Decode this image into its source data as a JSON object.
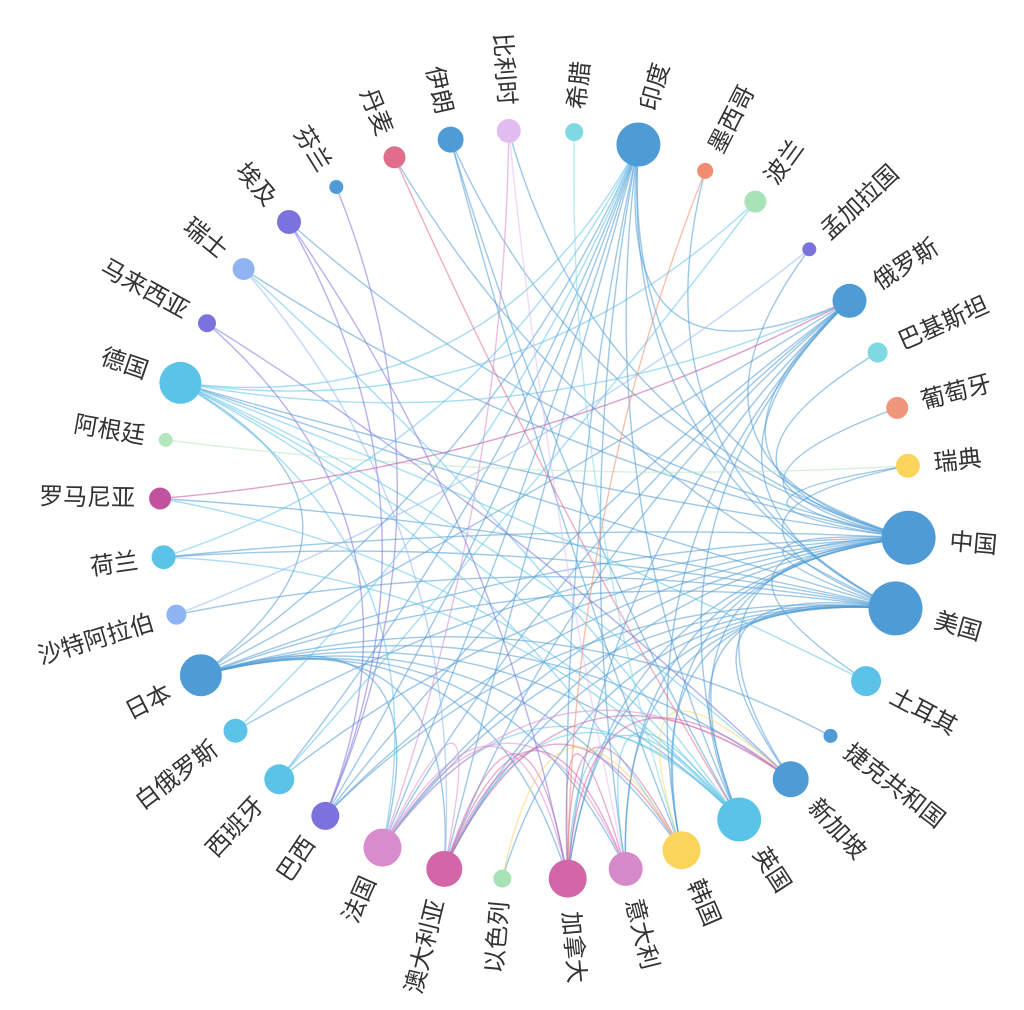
{
  "nodes": [
    {
      "id": "zhongguo",
      "label": "中国",
      "angle": 5,
      "size": 27,
      "color": "#4e9bd6"
    },
    {
      "id": "meiguo",
      "label": "美国",
      "angle": 16,
      "size": 27,
      "color": "#4e9bd6"
    },
    {
      "id": "tuerqi",
      "label": "土耳其",
      "angle": 28,
      "size": 15,
      "color": "#5cc3e8"
    },
    {
      "id": "jieke",
      "label": "捷克共和国",
      "angle": 38,
      "size": 7,
      "color": "#4e9bd6"
    },
    {
      "id": "xinjiapo",
      "label": "新加坡",
      "angle": 47,
      "size": 18,
      "color": "#4e9bd6"
    },
    {
      "id": "yingguo",
      "label": "英国",
      "angle": 57,
      "size": 22,
      "color": "#5cc3e8"
    },
    {
      "id": "hanguo",
      "label": "韩国",
      "angle": 67,
      "size": 19,
      "color": "#fbd45c"
    },
    {
      "id": "yidali",
      "label": "意大利",
      "angle": 76,
      "size": 17,
      "color": "#d78ac9"
    },
    {
      "id": "jianada",
      "label": "加拿大",
      "angle": 85,
      "size": 19,
      "color": "#d366a8"
    },
    {
      "id": "yiselie",
      "label": "以色列",
      "angle": 95,
      "size": 9,
      "color": "#a8e3b8"
    },
    {
      "id": "aodaliya",
      "label": "澳大利亚",
      "angle": 104,
      "size": 18,
      "color": "#d366a8"
    },
    {
      "id": "faguo",
      "label": "法国",
      "angle": 114,
      "size": 19,
      "color": "#d98ccc"
    },
    {
      "id": "baxi",
      "label": "巴西",
      "angle": 124,
      "size": 14,
      "color": "#7b72dd"
    },
    {
      "id": "xibanya",
      "label": "西班牙",
      "angle": 133,
      "size": 15,
      "color": "#5cc3e8"
    },
    {
      "id": "baieluosi",
      "label": "白俄罗斯",
      "angle": 143,
      "size": 12,
      "color": "#5cc3e8"
    },
    {
      "id": "riben",
      "label": "日本",
      "angle": 153,
      "size": 21,
      "color": "#4e9bd6"
    },
    {
      "id": "shate",
      "label": "沙特阿拉伯",
      "angle": 163,
      "size": 10,
      "color": "#8fb4f2"
    },
    {
      "id": "helan",
      "label": "荷兰",
      "angle": 172,
      "size": 12,
      "color": "#5cc3e8"
    },
    {
      "id": "luomaniya",
      "label": "罗马尼亚",
      "angle": 181,
      "size": 11,
      "color": "#c3529e"
    },
    {
      "id": "agenting",
      "label": "阿根廷",
      "angle": 190,
      "size": 7,
      "color": "#b4e6c0"
    },
    {
      "id": "deguo",
      "label": "德国",
      "angle": 199,
      "size": 21,
      "color": "#5cc3e8"
    },
    {
      "id": "malaixiya",
      "label": "马来西亚",
      "angle": 209,
      "size": 9,
      "color": "#7b72dd"
    },
    {
      "id": "ruishi",
      "label": "瑞士",
      "angle": 219,
      "size": 11,
      "color": "#8fb4f2"
    },
    {
      "id": "aiji",
      "label": "埃及",
      "angle": 229,
      "size": 12,
      "color": "#7b72dd"
    },
    {
      "id": "fenlan",
      "label": "芬兰",
      "angle": 238,
      "size": 7,
      "color": "#4e9bd6"
    },
    {
      "id": "danmai",
      "label": "丹麦",
      "angle": 248,
      "size": 11,
      "color": "#e06d8c"
    },
    {
      "id": "yilang",
      "label": "伊朗",
      "angle": 257,
      "size": 13,
      "color": "#4e9bd6"
    },
    {
      "id": "bilishi",
      "label": "比利时",
      "angle": 266,
      "size": 12,
      "color": "#e2bcf0"
    },
    {
      "id": "xila",
      "label": "希腊",
      "angle": 276,
      "size": 9,
      "color": "#7fd9e3"
    },
    {
      "id": "yindu",
      "label": "印度",
      "angle": 286,
      "size": 22,
      "color": "#4e9bd6"
    },
    {
      "id": "moxige",
      "label": "墨西哥",
      "angle": 297,
      "size": 8,
      "color": "#f08c70"
    },
    {
      "id": "bolan",
      "label": "波兰",
      "angle": 306,
      "size": 11,
      "color": "#a8e3b8"
    },
    {
      "id": "mengjialaguo",
      "label": "孟加拉国",
      "angle": 317,
      "size": 7,
      "color": "#7b72dd"
    },
    {
      "id": "eluosi",
      "label": "俄罗斯",
      "angle": 327,
      "size": 17,
      "color": "#4e9bd6"
    },
    {
      "id": "bajisitan",
      "label": "巴基斯坦",
      "angle": 336,
      "size": 10,
      "color": "#7fd9e3"
    },
    {
      "id": "putaoya",
      "label": "葡萄牙",
      "angle": 345,
      "size": 11,
      "color": "#f0967a"
    },
    {
      "id": "ruidian",
      "label": "瑞典",
      "angle": 354,
      "size": 12,
      "color": "#fbd45c"
    }
  ],
  "links": [
    [
      "zhongguo",
      "meiguo"
    ],
    [
      "zhongguo",
      "riben"
    ],
    [
      "zhongguo",
      "deguo"
    ],
    [
      "zhongguo",
      "yindu"
    ],
    [
      "zhongguo",
      "eluosi"
    ],
    [
      "zhongguo",
      "yingguo"
    ],
    [
      "zhongguo",
      "hanguo"
    ],
    [
      "zhongguo",
      "jianada"
    ],
    [
      "zhongguo",
      "aodaliya"
    ],
    [
      "zhongguo",
      "faguo"
    ],
    [
      "zhongguo",
      "xinjiapo"
    ],
    [
      "zhongguo",
      "baxi"
    ],
    [
      "zhongguo",
      "xibanya"
    ],
    [
      "zhongguo",
      "helan"
    ],
    [
      "zhongguo",
      "ruishi"
    ],
    [
      "zhongguo",
      "bajisitan"
    ],
    [
      "zhongguo",
      "ruidian"
    ],
    [
      "zhongguo",
      "putaoya"
    ],
    [
      "zhongguo",
      "tuerqi"
    ],
    [
      "zhongguo",
      "yidali"
    ],
    [
      "zhongguo",
      "baieluosi"
    ],
    [
      "zhongguo",
      "mengjialaguo"
    ],
    [
      "zhongguo",
      "bilishi"
    ],
    [
      "zhongguo",
      "yilang"
    ],
    [
      "zhongguo",
      "aiji"
    ],
    [
      "meiguo",
      "riben"
    ],
    [
      "meiguo",
      "deguo"
    ],
    [
      "meiguo",
      "yingguo"
    ],
    [
      "meiguo",
      "jianada"
    ],
    [
      "meiguo",
      "faguo"
    ],
    [
      "meiguo",
      "yindu"
    ],
    [
      "meiguo",
      "hanguo"
    ],
    [
      "meiguo",
      "aodaliya"
    ],
    [
      "meiguo",
      "yiselie"
    ],
    [
      "meiguo",
      "baxi"
    ],
    [
      "meiguo",
      "moxige"
    ],
    [
      "meiguo",
      "xinjiapo"
    ],
    [
      "meiguo",
      "luomaniya"
    ],
    [
      "meiguo",
      "danmai"
    ],
    [
      "meiguo",
      "eluosi"
    ],
    [
      "meiguo",
      "shate"
    ],
    [
      "meiguo",
      "helan"
    ],
    [
      "meiguo",
      "ruidian"
    ],
    [
      "meiguo",
      "yidali"
    ],
    [
      "riben",
      "yindu"
    ],
    [
      "riben",
      "deguo"
    ],
    [
      "riben",
      "eluosi"
    ],
    [
      "riben",
      "yingguo"
    ],
    [
      "riben",
      "faguo"
    ],
    [
      "riben",
      "hanguo"
    ],
    [
      "riben",
      "xinjiapo"
    ],
    [
      "riben",
      "aodaliya"
    ],
    [
      "riben",
      "jianada"
    ],
    [
      "riben",
      "yidali"
    ],
    [
      "deguo",
      "yindu"
    ],
    [
      "deguo",
      "eluosi"
    ],
    [
      "deguo",
      "faguo"
    ],
    [
      "deguo",
      "yingguo"
    ],
    [
      "deguo",
      "hanguo"
    ],
    [
      "deguo",
      "xinjiapo"
    ],
    [
      "deguo",
      "bolan"
    ],
    [
      "yindu",
      "eluosi"
    ],
    [
      "yindu",
      "yingguo"
    ],
    [
      "yindu",
      "baxi"
    ],
    [
      "yindu",
      "faguo"
    ],
    [
      "yindu",
      "aodaliya"
    ],
    [
      "yindu",
      "jianada"
    ],
    [
      "yindu",
      "yidali"
    ],
    [
      "yindu",
      "xibanya"
    ],
    [
      "eluosi",
      "faguo"
    ],
    [
      "eluosi",
      "yingguo"
    ],
    [
      "eluosi",
      "jianada"
    ],
    [
      "eluosi",
      "aodaliya"
    ],
    [
      "eluosi",
      "baxi"
    ],
    [
      "eluosi",
      "hanguo"
    ],
    [
      "yingguo",
      "faguo"
    ],
    [
      "yingguo",
      "aodaliya"
    ],
    [
      "yingguo",
      "jianada"
    ],
    [
      "yingguo",
      "yidali"
    ],
    [
      "yingguo",
      "luomaniya"
    ],
    [
      "yingguo",
      "helan"
    ],
    [
      "yingguo",
      "ruishi"
    ],
    [
      "faguo",
      "jianada"
    ],
    [
      "faguo",
      "aodaliya"
    ],
    [
      "faguo",
      "yidali"
    ],
    [
      "faguo",
      "bilishi"
    ],
    [
      "faguo",
      "xinjiapo"
    ],
    [
      "aodaliya",
      "jianada"
    ],
    [
      "aodaliya",
      "hanguo"
    ],
    [
      "aodaliya",
      "xinjiapo"
    ],
    [
      "aodaliya",
      "yidali"
    ],
    [
      "jianada",
      "hanguo"
    ],
    [
      "jianada",
      "xinjiapo"
    ],
    [
      "jianada",
      "yidali"
    ],
    [
      "hanguo",
      "xinjiapo"
    ],
    [
      "hanguo",
      "yiselie"
    ],
    [
      "baxi",
      "aiji"
    ],
    [
      "baxi",
      "malaixiya"
    ],
    [
      "baxi",
      "fenlan"
    ],
    [
      "xibanya",
      "bolan"
    ],
    [
      "baieluosi",
      "yindu"
    ],
    [
      "shate",
      "mengjialaguo"
    ],
    [
      "agenting",
      "ruidian"
    ],
    [
      "yilang",
      "yingguo"
    ],
    [
      "yilang",
      "hanguo"
    ],
    [
      "bilishi",
      "yidali"
    ],
    [
      "xila",
      "hanguo"
    ],
    [
      "danmai",
      "yingguo"
    ],
    [
      "aiji",
      "jianada"
    ],
    [
      "ruishi",
      "aodaliya"
    ],
    [
      "malaixiya",
      "xinjiapo"
    ],
    [
      "moxige",
      "jianada"
    ],
    [
      "tuerqi",
      "deguo"
    ],
    [
      "jieke",
      "riben"
    ],
    [
      "luomaniya",
      "eluosi"
    ],
    [
      "helan",
      "yindu"
    ]
  ]
}
